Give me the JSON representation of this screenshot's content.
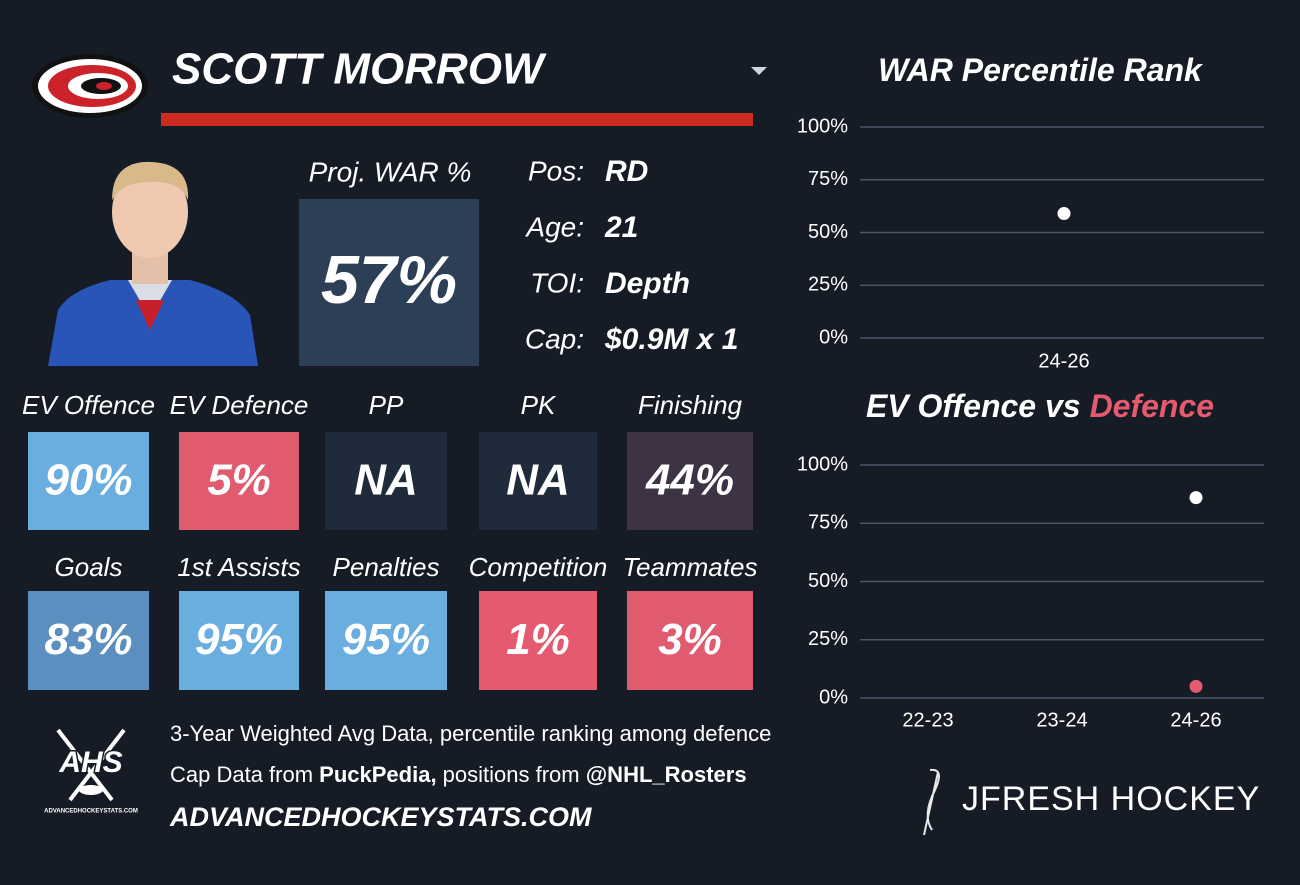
{
  "header": {
    "name": "SCOTT MORROW"
  },
  "proj_war": {
    "label": "Proj. WAR %",
    "value": "57%"
  },
  "info": [
    {
      "label": "Pos:",
      "value": "RD"
    },
    {
      "label": "Age:",
      "value": "21"
    },
    {
      "label": "TOI:",
      "value": "Depth"
    },
    {
      "label": "Cap:",
      "value": "$0.9M x 1"
    }
  ],
  "tiles": [
    {
      "label": "EV Offence",
      "value": "90%",
      "color": "#6aaee0"
    },
    {
      "label": "EV Defence",
      "value": "5%",
      "color": "#e05a70"
    },
    {
      "label": "PP",
      "value": "NA",
      "color": "#1f2a3a"
    },
    {
      "label": "PK",
      "value": "NA",
      "color": "#1f2a3a"
    },
    {
      "label": "Finishing",
      "value": "44%",
      "color": "#3d3344"
    },
    {
      "label": "Goals",
      "value": "83%",
      "color": "#5b8fbf"
    },
    {
      "label": "1st Assists",
      "value": "95%",
      "color": "#6aaee0"
    },
    {
      "label": "Penalties",
      "value": "95%",
      "color": "#6aaee0"
    },
    {
      "label": "Competition",
      "value": "1%",
      "color": "#e55a6e"
    },
    {
      "label": "Teammates",
      "value": "3%",
      "color": "#e05a70"
    }
  ],
  "footer": {
    "logo_text": "AHS",
    "logo_small": "ADVANCEDHOCKEYSTATS.COM",
    "line1": "3-Year Weighted Avg Data, percentile ranking among defence",
    "line2": [
      "Cap Data from ",
      "PuckPedia,",
      " positions from ",
      "@NHL_Rosters"
    ],
    "url": "ADVANCEDHOCKEYSTATS.COM",
    "brand": "JFRESH HOCKEY"
  },
  "chart_data": [
    {
      "type": "scatter",
      "title_parts": [
        "WAR Percentile Rank"
      ],
      "categories": [
        "24-26"
      ],
      "series": [
        {
          "color": "#ffffff",
          "values": [
            59
          ]
        }
      ],
      "ylim": [
        0,
        100
      ],
      "yticks": [
        {
          "value": 0,
          "label": "0%"
        },
        {
          "value": 25,
          "label": "25%"
        },
        {
          "value": 50,
          "label": "50%"
        },
        {
          "value": 75,
          "label": "75%"
        },
        {
          "value": 100,
          "label": "100%"
        }
      ],
      "grid": true
    },
    {
      "type": "scatter",
      "title_parts": [
        "EV Offence vs",
        "Defence"
      ],
      "categories": [
        "22-23",
        "23-24",
        "24-26"
      ],
      "series": [
        {
          "color": "#ffffff",
          "values": [
            null,
            null,
            86
          ]
        },
        {
          "color": "#e55a6e",
          "values": [
            null,
            null,
            5
          ]
        }
      ],
      "ylim": [
        0,
        100
      ],
      "yticks": [
        {
          "value": 0,
          "label": "0%"
        },
        {
          "value": 25,
          "label": "25%"
        },
        {
          "value": 50,
          "label": "50%"
        },
        {
          "value": 75,
          "label": "75%"
        },
        {
          "value": 100,
          "label": "100%"
        }
      ],
      "grid": true
    }
  ]
}
